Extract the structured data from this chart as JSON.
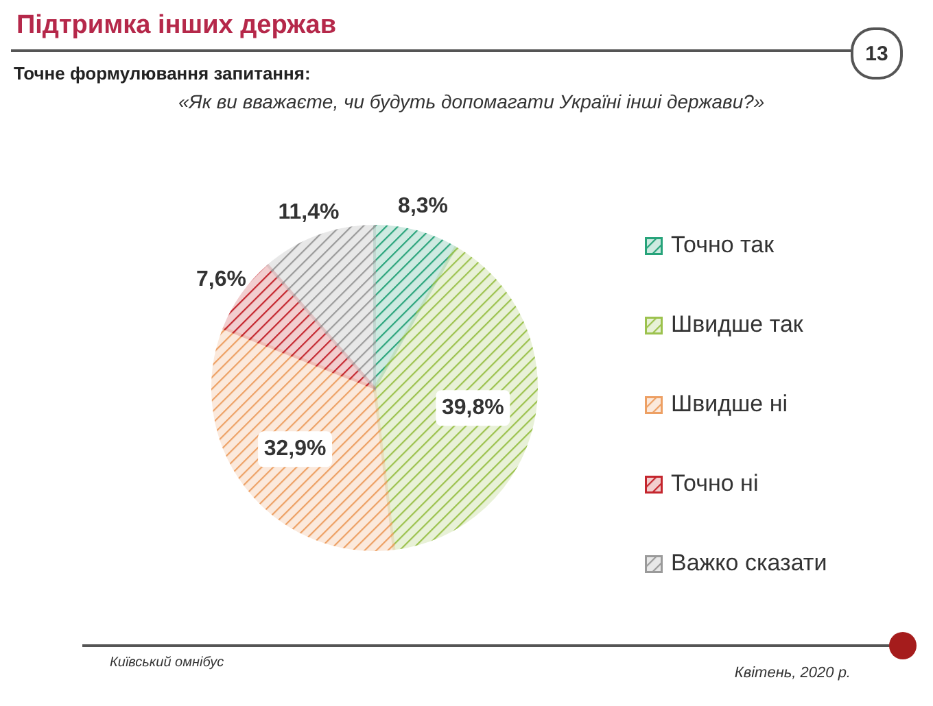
{
  "chart_data": {
    "type": "pie",
    "title": "Підтримка інших держав",
    "subtitle": "«Як ви вважаєте, чи будуть допомагати Україні інші держави?»",
    "annotations": [
      "Точне формулювання запитання:",
      "13",
      "Київський омнібус",
      "Квітень, 2020 р."
    ],
    "categories": [
      "Точно так",
      "Швидше так",
      "Швидше ні",
      "Точно ні",
      "Важко сказати"
    ],
    "values": [
      8.3,
      39.8,
      32.9,
      7.6,
      11.4
    ],
    "value_labels": [
      "8,3%",
      "39,8%",
      "32,9%",
      "7,6%",
      "11,4%"
    ],
    "colors": [
      "#27a37a",
      "#9cc24e",
      "#eda064",
      "#c4262e",
      "#9a9a9a"
    ],
    "legend": "right"
  }
}
